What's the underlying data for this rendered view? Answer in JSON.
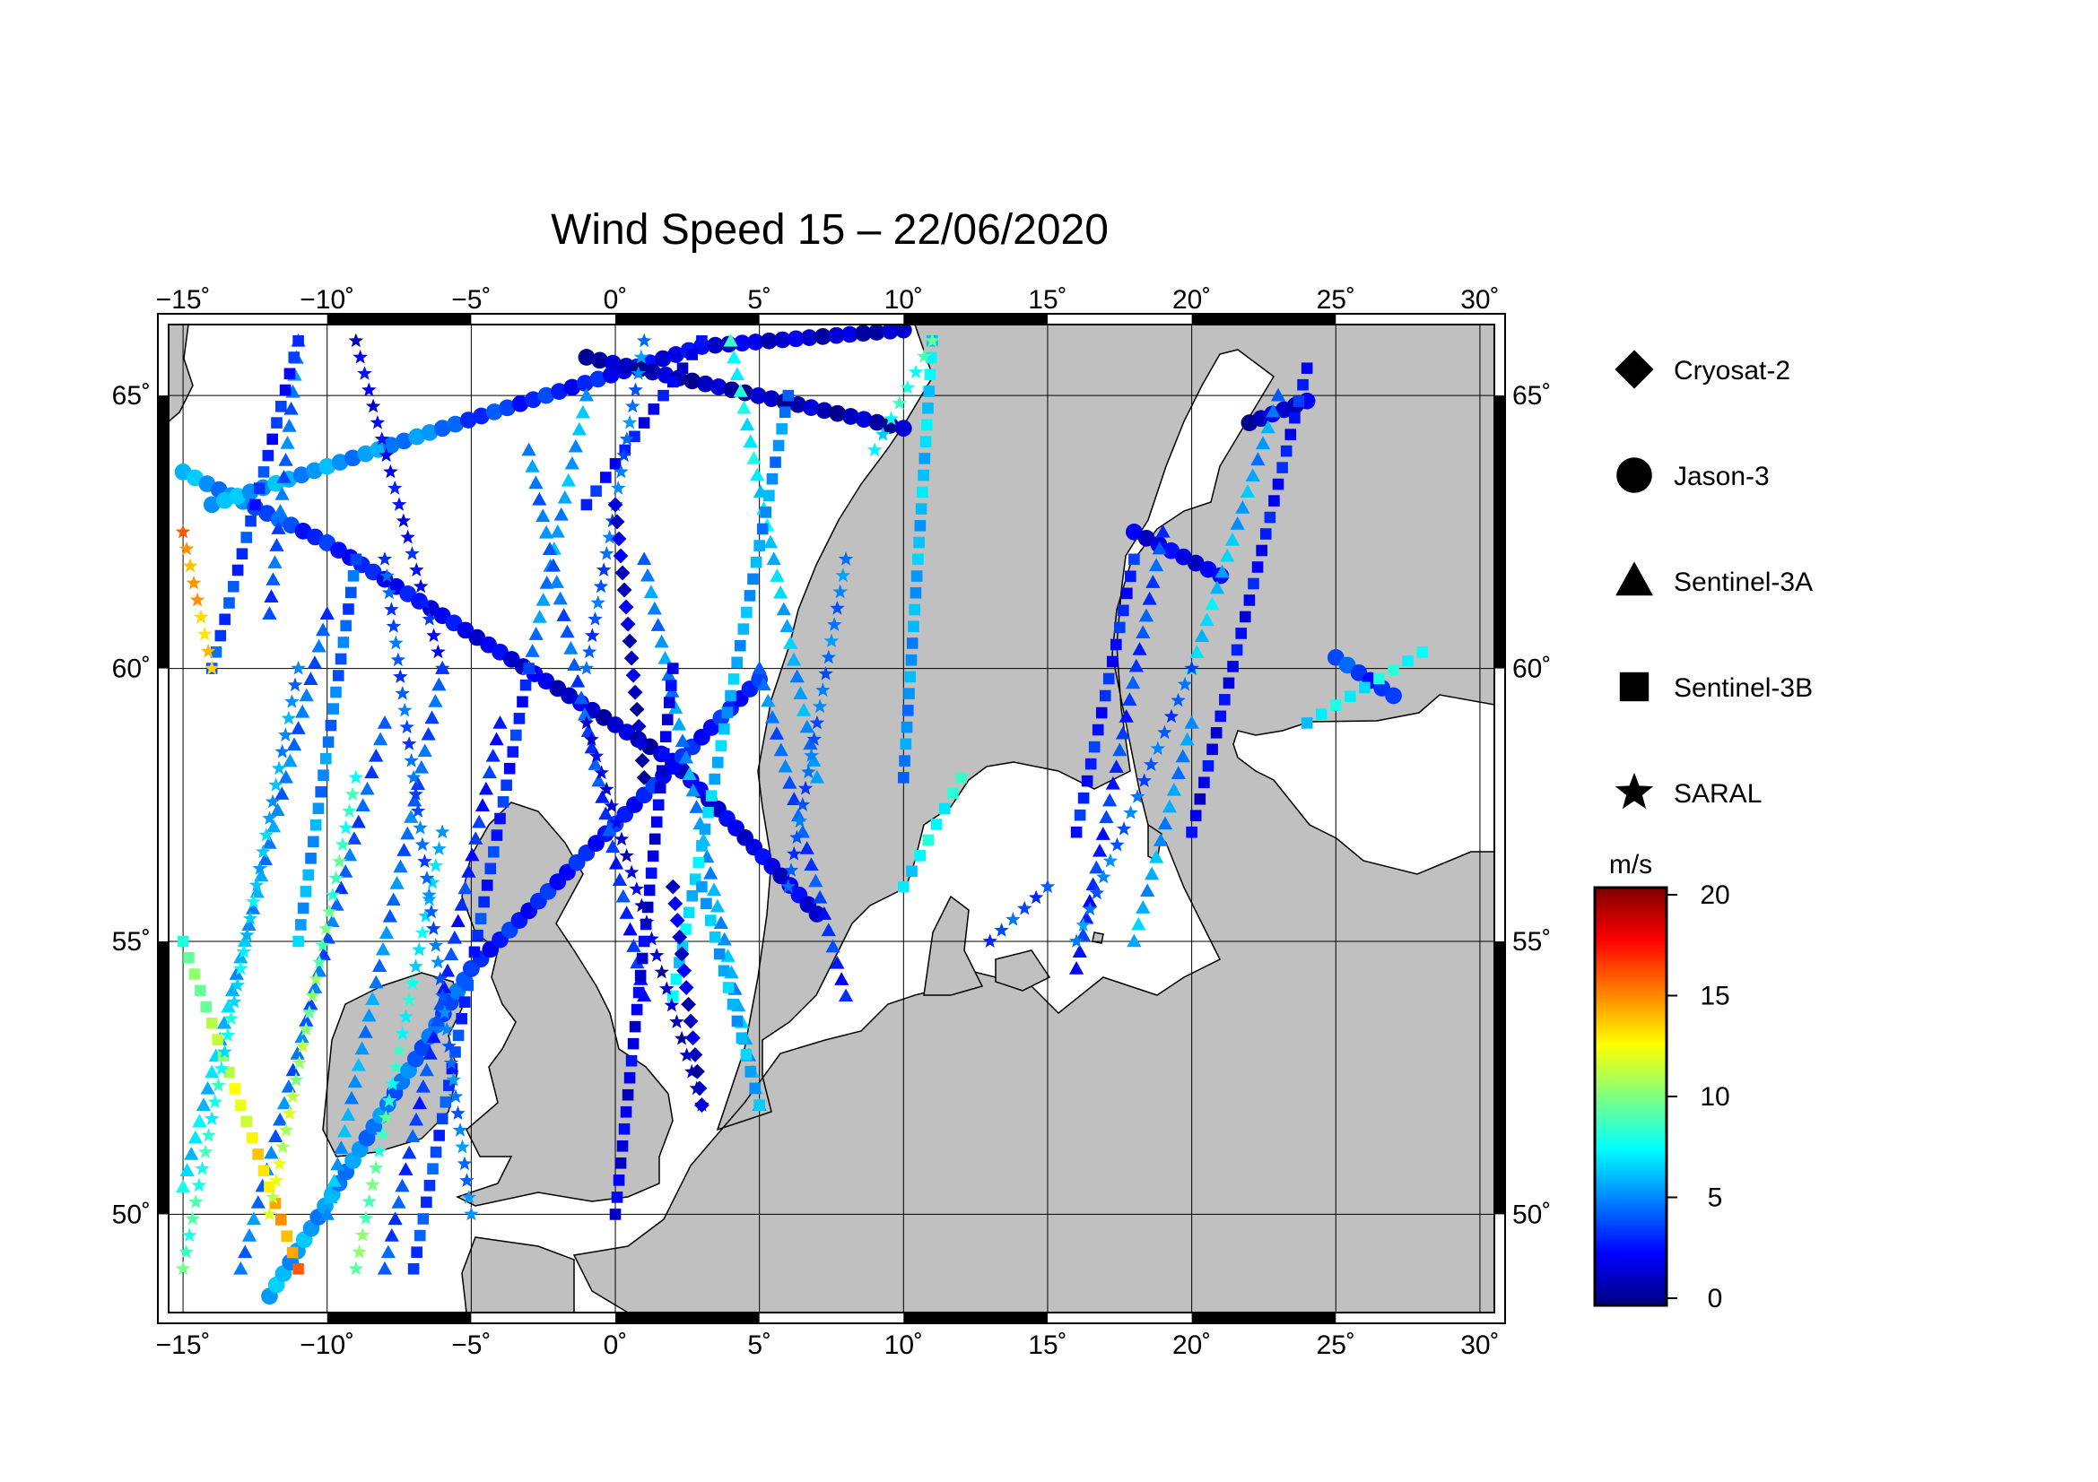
{
  "title": "Wind Speed 15 – 22/06/2020",
  "map": {
    "lon_range": [
      -15.5,
      30.5
    ],
    "lat_range": [
      48.2,
      66.3
    ],
    "lon_ticks": [
      -15,
      -10,
      -5,
      0,
      5,
      10,
      15,
      20,
      25,
      30
    ],
    "lat_ticks": [
      50,
      55,
      60,
      65
    ],
    "lon_tick_labels": [
      "−15˚",
      "−10˚",
      "−5˚",
      "0˚",
      "5˚",
      "10˚",
      "15˚",
      "20˚",
      "25˚",
      "30˚"
    ],
    "lat_tick_labels": [
      "50˚",
      "55˚",
      "60˚",
      "65˚"
    ],
    "grid": true,
    "land_color": "#c0c0c0",
    "ocean_color": "#ffffff"
  },
  "legend": {
    "placement": "right",
    "items": [
      {
        "name": "Cryosat-2",
        "marker": "diamond"
      },
      {
        "name": "Jason-3",
        "marker": "circle"
      },
      {
        "name": "Sentinel-3A",
        "marker": "triangle"
      },
      {
        "name": "Sentinel-3B",
        "marker": "square"
      },
      {
        "name": "SARAL",
        "marker": "star"
      }
    ]
  },
  "colorbar": {
    "unit": "m/s",
    "range": [
      0,
      20
    ],
    "ticks": [
      "0",
      "5",
      "10",
      "15",
      "20"
    ],
    "colormap": [
      "#000080",
      "#0000ff",
      "#0080ff",
      "#00ffff",
      "#80ff80",
      "#ffff00",
      "#ff8000",
      "#ff0000",
      "#800000"
    ]
  },
  "chart_data": {
    "type": "scatter",
    "x_axis": "longitude (deg)",
    "y_axis": "latitude (deg)",
    "value": "wind speed (m/s)",
    "tracks": [
      {
        "satellite": "Jason-3",
        "from": [
          -15,
          63.6
        ],
        "to": [
          -10,
          62.3
        ],
        "speed": [
          6,
          3
        ]
      },
      {
        "satellite": "Jason-3",
        "from": [
          -10,
          62.3
        ],
        "to": [
          2,
          58.3
        ],
        "speed": [
          3,
          1
        ]
      },
      {
        "satellite": "Jason-3",
        "from": [
          2,
          58.3
        ],
        "to": [
          7,
          55.5
        ],
        "speed": [
          2,
          2
        ]
      },
      {
        "satellite": "Jason-3",
        "from": [
          -14,
          63.0
        ],
        "to": [
          -6,
          64.4
        ],
        "speed": [
          6,
          5
        ]
      },
      {
        "satellite": "Jason-3",
        "from": [
          -6,
          64.4
        ],
        "to": [
          3,
          65.9
        ],
        "speed": [
          4,
          2
        ]
      },
      {
        "satellite": "Jason-3",
        "from": [
          3,
          65.9
        ],
        "to": [
          10,
          66.2
        ],
        "speed": [
          2,
          1
        ]
      },
      {
        "satellite": "Jason-3",
        "from": [
          -1,
          65.7
        ],
        "to": [
          10,
          64.4
        ],
        "speed": [
          1,
          1
        ]
      },
      {
        "satellite": "Jason-3",
        "from": [
          -12,
          48.5
        ],
        "to": [
          -5,
          54.5
        ],
        "speed": [
          6,
          4
        ]
      },
      {
        "satellite": "Jason-3",
        "from": [
          -5,
          54.5
        ],
        "to": [
          5,
          59.8
        ],
        "speed": [
          3,
          3
        ]
      },
      {
        "satellite": "Jason-3",
        "from": [
          18,
          62.5
        ],
        "to": [
          21,
          61.7
        ],
        "speed": [
          2,
          2
        ]
      },
      {
        "satellite": "Jason-3",
        "from": [
          22,
          64.5
        ],
        "to": [
          24,
          64.9
        ],
        "speed": [
          1,
          2
        ]
      },
      {
        "satellite": "Jason-3",
        "from": [
          25,
          60.2
        ],
        "to": [
          27,
          59.5
        ],
        "speed": [
          4,
          3
        ]
      },
      {
        "satellite": "Sentinel-3A",
        "from": [
          -15,
          50.5
        ],
        "to": [
          -10,
          61.0
        ],
        "speed": [
          7,
          4
        ]
      },
      {
        "satellite": "Sentinel-3A",
        "from": [
          -13,
          49
        ],
        "to": [
          -8,
          59
        ],
        "speed": [
          5,
          4
        ]
      },
      {
        "satellite": "Sentinel-3A",
        "from": [
          -10,
          50
        ],
        "to": [
          -6,
          60
        ],
        "speed": [
          6,
          4
        ]
      },
      {
        "satellite": "Sentinel-3A",
        "from": [
          -8,
          49
        ],
        "to": [
          -4,
          59
        ],
        "speed": [
          4,
          3
        ]
      },
      {
        "satellite": "Sentinel-3A",
        "from": [
          -3,
          60
        ],
        "to": [
          -1,
          65
        ],
        "speed": [
          5,
          6
        ]
      },
      {
        "satellite": "Sentinel-3A",
        "from": [
          1,
          54
        ],
        "to": [
          -3,
          64
        ],
        "speed": [
          3,
          5
        ]
      },
      {
        "satellite": "Sentinel-3A",
        "from": [
          5,
          52
        ],
        "to": [
          1,
          62
        ],
        "speed": [
          6,
          5
        ]
      },
      {
        "satellite": "Sentinel-3A",
        "from": [
          7,
          58
        ],
        "to": [
          4,
          66
        ],
        "speed": [
          5,
          8
        ]
      },
      {
        "satellite": "Sentinel-3A",
        "from": [
          8,
          54
        ],
        "to": [
          5,
          60
        ],
        "speed": [
          3,
          5
        ]
      },
      {
        "satellite": "Sentinel-3A",
        "from": [
          16,
          54.5
        ],
        "to": [
          19,
          62.5
        ],
        "speed": [
          3,
          4
        ]
      },
      {
        "satellite": "Sentinel-3A",
        "from": [
          18,
          55
        ],
        "to": [
          20,
          59
        ],
        "speed": [
          6,
          5
        ]
      },
      {
        "satellite": "Sentinel-3A",
        "from": [
          20,
          60
        ],
        "to": [
          23,
          65
        ],
        "speed": [
          7,
          5
        ]
      },
      {
        "satellite": "Sentinel-3A",
        "from": [
          -12,
          61
        ],
        "to": [
          -11,
          66
        ],
        "speed": [
          4,
          5
        ]
      },
      {
        "satellite": "Sentinel-3B",
        "from": [
          -15,
          55
        ],
        "to": [
          -11,
          49
        ],
        "speed": [
          9,
          15
        ]
      },
      {
        "satellite": "Sentinel-3B",
        "from": [
          -14,
          60
        ],
        "to": [
          -11,
          66
        ],
        "speed": [
          4,
          3
        ]
      },
      {
        "satellite": "Sentinel-3B",
        "from": [
          -11,
          55
        ],
        "to": [
          -9,
          62
        ],
        "speed": [
          6,
          4
        ]
      },
      {
        "satellite": "Sentinel-3B",
        "from": [
          -7,
          49
        ],
        "to": [
          -3,
          60
        ],
        "speed": [
          4,
          3
        ]
      },
      {
        "satellite": "Sentinel-3B",
        "from": [
          0,
          50
        ],
        "to": [
          2,
          60
        ],
        "speed": [
          2,
          2
        ]
      },
      {
        "satellite": "Sentinel-3B",
        "from": [
          2,
          54
        ],
        "to": [
          6,
          65
        ],
        "speed": [
          7,
          5
        ]
      },
      {
        "satellite": "Sentinel-3B",
        "from": [
          5,
          52
        ],
        "to": [
          3,
          56
        ],
        "speed": [
          6,
          6
        ]
      },
      {
        "satellite": "Sentinel-3B",
        "from": [
          10,
          58
        ],
        "to": [
          11,
          66
        ],
        "speed": [
          5,
          7
        ]
      },
      {
        "satellite": "Sentinel-3B",
        "from": [
          16,
          57
        ],
        "to": [
          18,
          62
        ],
        "speed": [
          3,
          3
        ]
      },
      {
        "satellite": "Sentinel-3B",
        "from": [
          20,
          57
        ],
        "to": [
          24,
          65.5
        ],
        "speed": [
          2,
          3
        ]
      },
      {
        "satellite": "Sentinel-3B",
        "from": [
          10,
          56
        ],
        "to": [
          12,
          58
        ],
        "speed": [
          7,
          8
        ]
      },
      {
        "satellite": "Sentinel-3B",
        "from": [
          24,
          59
        ],
        "to": [
          28,
          60.3
        ],
        "speed": [
          7,
          8
        ]
      },
      {
        "satellite": "Sentinel-3B",
        "from": [
          -1,
          63
        ],
        "to": [
          3,
          66
        ],
        "speed": [
          3,
          2
        ]
      },
      {
        "satellite": "SARAL",
        "from": [
          -15,
          49
        ],
        "to": [
          -11,
          60
        ],
        "speed": [
          9,
          5
        ]
      },
      {
        "satellite": "SARAL",
        "from": [
          -12,
          50
        ],
        "to": [
          -9,
          58
        ],
        "speed": [
          12,
          8
        ]
      },
      {
        "satellite": "SARAL",
        "from": [
          -9,
          49
        ],
        "to": [
          -6,
          57
        ],
        "speed": [
          10,
          6
        ]
      },
      {
        "satellite": "SARAL",
        "from": [
          -5,
          50
        ],
        "to": [
          -8,
          62
        ],
        "speed": [
          5,
          4
        ]
      },
      {
        "satellite": "SARAL",
        "from": [
          -6,
          60
        ],
        "to": [
          -9,
          66
        ],
        "speed": [
          3,
          2
        ]
      },
      {
        "satellite": "SARAL",
        "from": [
          -1,
          59
        ],
        "to": [
          3,
          52
        ],
        "speed": [
          2,
          1
        ]
      },
      {
        "satellite": "SARAL",
        "from": [
          1,
          66
        ],
        "to": [
          -1,
          60
        ],
        "speed": [
          5,
          4
        ]
      },
      {
        "satellite": "SARAL",
        "from": [
          6,
          56
        ],
        "to": [
          8,
          62
        ],
        "speed": [
          4,
          5
        ]
      },
      {
        "satellite": "SARAL",
        "from": [
          9,
          64
        ],
        "to": [
          11,
          66
        ],
        "speed": [
          7,
          9
        ]
      },
      {
        "satellite": "SARAL",
        "from": [
          13,
          55
        ],
        "to": [
          15,
          56
        ],
        "speed": [
          4,
          4
        ]
      },
      {
        "satellite": "SARAL",
        "from": [
          16,
          55
        ],
        "to": [
          20,
          60
        ],
        "speed": [
          5,
          4
        ]
      },
      {
        "satellite": "SARAL",
        "from": [
          -15,
          62.5
        ],
        "to": [
          -14,
          60
        ],
        "speed": [
          15,
          13
        ]
      },
      {
        "satellite": "Cryosat-2",
        "from": [
          0,
          63
        ],
        "to": [
          1,
          58
        ],
        "speed": [
          2,
          1
        ]
      },
      {
        "satellite": "Cryosat-2",
        "from": [
          2,
          56
        ],
        "to": [
          3,
          52
        ],
        "speed": [
          2,
          1
        ]
      }
    ]
  }
}
